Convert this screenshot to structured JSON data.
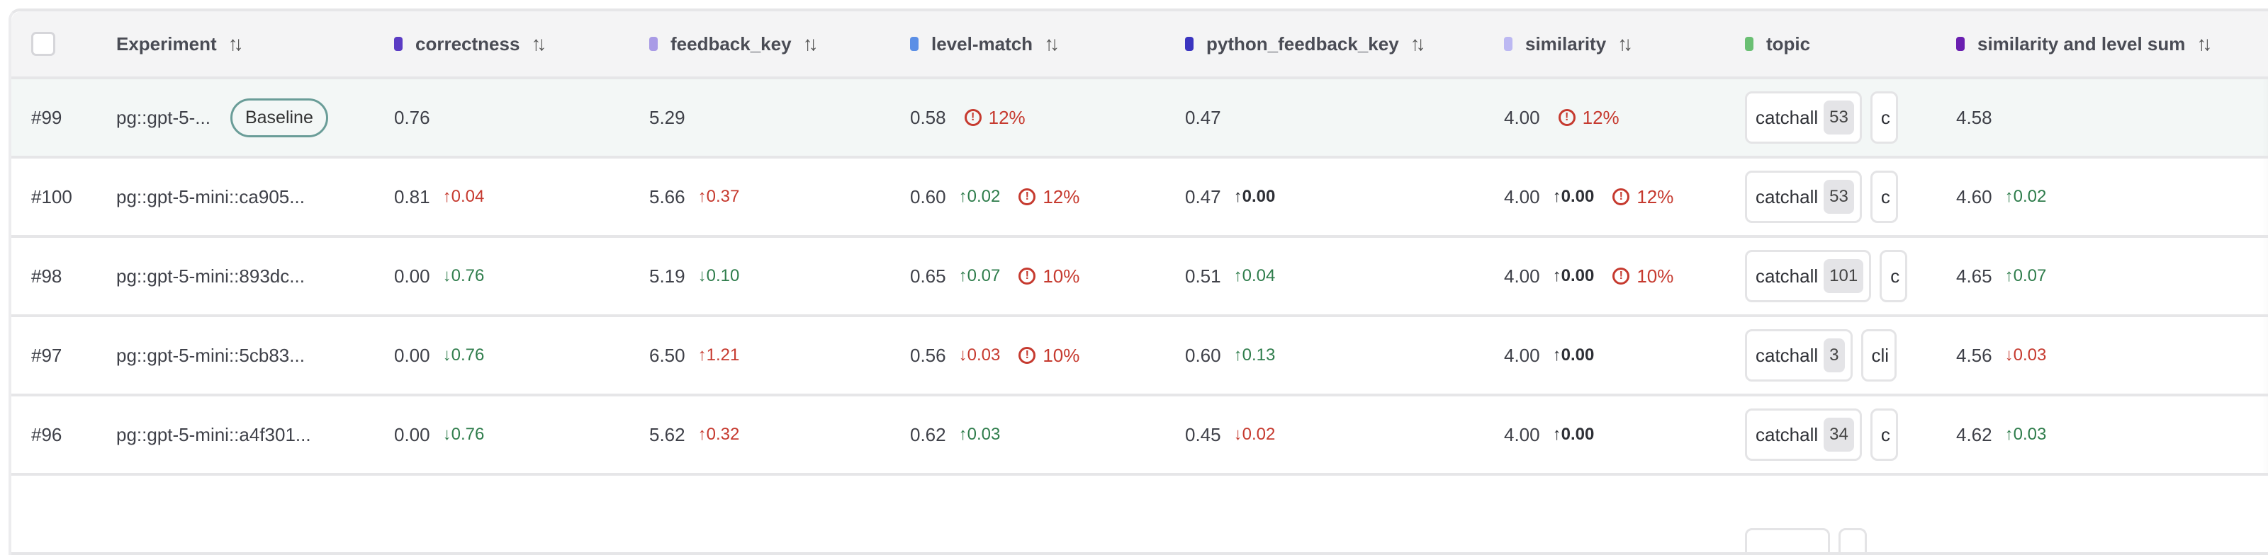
{
  "header": {
    "experiment": "Experiment",
    "columns": [
      {
        "label": "correctness",
        "color": "#5b3cc4",
        "sortable": true
      },
      {
        "label": "feedback_key",
        "color": "#a99be6",
        "sortable": true
      },
      {
        "label": "level-match",
        "color": "#5b8fe6",
        "sortable": true
      },
      {
        "label": "python_feedback_key",
        "color": "#3b35c0",
        "sortable": true
      },
      {
        "label": "similarity",
        "color": "#bcb8f2",
        "sortable": true
      },
      {
        "label": "topic",
        "color": "#6abf73",
        "sortable": false
      },
      {
        "label": "similarity and level sum",
        "color": "#6a1fb0",
        "sortable": true
      }
    ],
    "sort_icon": "sort-arrows-icon"
  },
  "colors": {
    "regression": "#c63a2f",
    "improvement": "#2f7d4c",
    "baseline_border": "#6a9d98"
  },
  "rows": [
    {
      "num": "#99",
      "name": "pg::gpt-5-...",
      "badge": "Baseline",
      "correctness": {
        "v": "0.76"
      },
      "feedback_key": {
        "v": "5.29"
      },
      "level_match": {
        "v": "0.58",
        "warn": "12%"
      },
      "python_feedback_key": {
        "v": "0.47"
      },
      "similarity": {
        "v": "4.00",
        "warn": "12%"
      },
      "topic": [
        {
          "label": "catchall",
          "count": "53"
        },
        {
          "label": "c",
          "count": ""
        }
      ],
      "sum": {
        "v": "4.58"
      }
    },
    {
      "num": "#100",
      "name": "pg::gpt-5-mini::ca905...",
      "correctness": {
        "v": "0.81",
        "d": "↑0.04",
        "t": "up-bad"
      },
      "feedback_key": {
        "v": "5.66",
        "d": "↑0.37",
        "t": "up-bad"
      },
      "level_match": {
        "v": "0.60",
        "d": "↑0.02",
        "t": "up-good",
        "warn": "12%"
      },
      "python_feedback_key": {
        "v": "0.47",
        "d": "↑0.00",
        "t": "neutral"
      },
      "similarity": {
        "v": "4.00",
        "d": "↑0.00",
        "t": "neutral",
        "warn": "12%"
      },
      "topic": [
        {
          "label": "catchall",
          "count": "53"
        },
        {
          "label": "c",
          "count": ""
        }
      ],
      "sum": {
        "v": "4.60",
        "d": "↑0.02",
        "t": "up-good"
      }
    },
    {
      "num": "#98",
      "name": "pg::gpt-5-mini::893dc...",
      "correctness": {
        "v": "0.00",
        "d": "↓0.76",
        "t": "down-good"
      },
      "feedback_key": {
        "v": "5.19",
        "d": "↓0.10",
        "t": "down-good"
      },
      "level_match": {
        "v": "0.65",
        "d": "↑0.07",
        "t": "up-good",
        "warn": "10%"
      },
      "python_feedback_key": {
        "v": "0.51",
        "d": "↑0.04",
        "t": "up-good"
      },
      "similarity": {
        "v": "4.00",
        "d": "↑0.00",
        "t": "neutral",
        "warn": "10%"
      },
      "topic": [
        {
          "label": "catchall",
          "count": "101"
        },
        {
          "label": "c",
          "count": ""
        }
      ],
      "sum": {
        "v": "4.65",
        "d": "↑0.07",
        "t": "up-good"
      }
    },
    {
      "num": "#97",
      "name": "pg::gpt-5-mini::5cb83...",
      "correctness": {
        "v": "0.00",
        "d": "↓0.76",
        "t": "down-good"
      },
      "feedback_key": {
        "v": "6.50",
        "d": "↑1.21",
        "t": "up-bad"
      },
      "level_match": {
        "v": "0.56",
        "d": "↓0.03",
        "t": "down-bad",
        "warn": "10%"
      },
      "python_feedback_key": {
        "v": "0.60",
        "d": "↑0.13",
        "t": "up-good"
      },
      "similarity": {
        "v": "4.00",
        "d": "↑0.00",
        "t": "neutral"
      },
      "topic": [
        {
          "label": "catchall",
          "count": "3"
        },
        {
          "label": "cli",
          "count": ""
        }
      ],
      "sum": {
        "v": "4.56",
        "d": "↓0.03",
        "t": "down-bad"
      }
    },
    {
      "num": "#96",
      "name": "pg::gpt-5-mini::a4f301...",
      "correctness": {
        "v": "0.00",
        "d": "↓0.76",
        "t": "down-good"
      },
      "feedback_key": {
        "v": "5.62",
        "d": "↑0.32",
        "t": "up-bad"
      },
      "level_match": {
        "v": "0.62",
        "d": "↑0.03",
        "t": "up-good"
      },
      "python_feedback_key": {
        "v": "0.45",
        "d": "↓0.02",
        "t": "down-bad"
      },
      "similarity": {
        "v": "4.00",
        "d": "↑0.00",
        "t": "neutral"
      },
      "topic": [
        {
          "label": "catchall",
          "count": "34"
        },
        {
          "label": "c",
          "count": ""
        }
      ],
      "sum": {
        "v": "4.62",
        "d": "↑0.03",
        "t": "up-good"
      }
    }
  ]
}
